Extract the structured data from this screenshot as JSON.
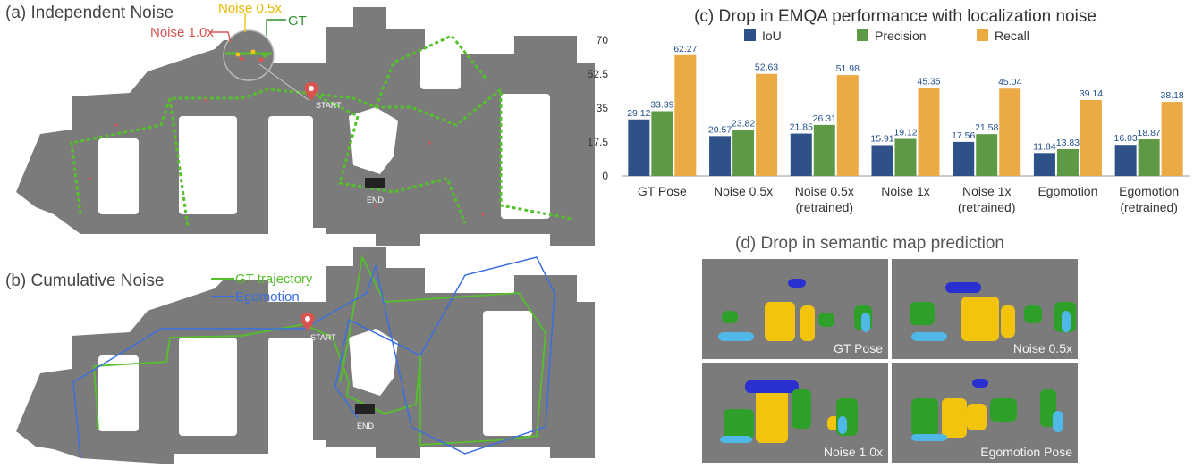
{
  "panels": {
    "a": {
      "title": "(a) Independent Noise",
      "legend_noise_05": "Noise 0.5x",
      "legend_gt": "GT",
      "legend_noise_10": "Noise 1.0x",
      "start_label": "START",
      "end_label": "END"
    },
    "b": {
      "title": "(b) Cumulative Noise",
      "legend_gt": "GT trajectory",
      "legend_ego": "Egomotion",
      "start_label": "START",
      "end_label": "END"
    },
    "d": {
      "title": "(d) Drop in semantic map prediction",
      "thumbs": [
        "GT Pose",
        "Noise 0.5x",
        "Noise 1.0x",
        "Egomotion Pose"
      ]
    }
  },
  "colors": {
    "iou": "#2e5288",
    "precision": "#5e9a45",
    "recall": "#ecaa45",
    "gt_path": "#55c02b",
    "ego_path": "#3b6fe0",
    "noise05": "#f0c419",
    "noise10": "#d65552",
    "map_floor": "#7b7b7b",
    "value_label": "#1f4e8c"
  },
  "chart_data": {
    "type": "bar",
    "title": "(c) Drop in EMQA performance with localization noise",
    "categories": [
      "GT Pose",
      "Noise 0.5x",
      "Noise 0.5x\n(retrained)",
      "Noise 1x",
      "Noise 1x\n(retrained)",
      "Egomotion",
      "Egomotion\n(retrained)"
    ],
    "series": [
      {
        "name": "IoU",
        "values": [
          29.12,
          20.57,
          21.85,
          15.91,
          17.56,
          11.84,
          16.03
        ]
      },
      {
        "name": "Precision",
        "values": [
          33.39,
          23.82,
          26.31,
          19.12,
          21.58,
          13.83,
          18.87
        ]
      },
      {
        "name": "Recall",
        "values": [
          62.27,
          52.63,
          51.98,
          45.35,
          45.04,
          39.14,
          38.18
        ]
      }
    ],
    "ylim": [
      0,
      70
    ],
    "yticks": [
      "0",
      "17.5",
      "35",
      "52.5",
      "70"
    ],
    "legend": "top",
    "grid": false
  }
}
